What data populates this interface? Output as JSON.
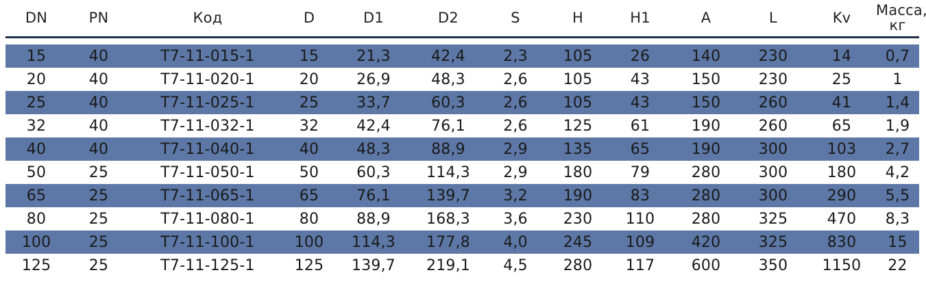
{
  "colors": {
    "header_rule": "#1e2f45",
    "row_shade": "#5d78a7",
    "text": "#1a1a1a"
  },
  "columns": [
    "DN",
    "PN",
    "Код",
    "D",
    "D1",
    "D2",
    "S",
    "H",
    "H1",
    "A",
    "L",
    "Kv",
    "Масса, кг"
  ],
  "header": {
    "mass_line1": "Масса,",
    "mass_line2": "кг"
  },
  "rows": [
    [
      "15",
      "40",
      "T7-11-015-1",
      "15",
      "21,3",
      "42,4",
      "2,3",
      "105",
      "26",
      "140",
      "230",
      "14",
      "0,7"
    ],
    [
      "20",
      "40",
      "T7-11-020-1",
      "20",
      "26,9",
      "48,3",
      "2,6",
      "105",
      "43",
      "150",
      "230",
      "25",
      "1"
    ],
    [
      "25",
      "40",
      "T7-11-025-1",
      "25",
      "33,7",
      "60,3",
      "2,6",
      "105",
      "43",
      "150",
      "260",
      "41",
      "1,4"
    ],
    [
      "32",
      "40",
      "T7-11-032-1",
      "32",
      "42,4",
      "76,1",
      "2,6",
      "125",
      "61",
      "190",
      "260",
      "65",
      "1,9"
    ],
    [
      "40",
      "40",
      "T7-11-040-1",
      "40",
      "48,3",
      "88,9",
      "2,9",
      "135",
      "65",
      "190",
      "300",
      "103",
      "2,7"
    ],
    [
      "50",
      "25",
      "T7-11-050-1",
      "50",
      "60,3",
      "114,3",
      "2,9",
      "180",
      "79",
      "280",
      "300",
      "180",
      "4,2"
    ],
    [
      "65",
      "25",
      "T7-11-065-1",
      "65",
      "76,1",
      "139,7",
      "3,2",
      "190",
      "83",
      "280",
      "300",
      "290",
      "5,5"
    ],
    [
      "80",
      "25",
      "T7-11-080-1",
      "80",
      "88,9",
      "168,3",
      "3,6",
      "230",
      "110",
      "280",
      "325",
      "470",
      "8,3"
    ],
    [
      "100",
      "25",
      "T7-11-100-1",
      "100",
      "114,3",
      "177,8",
      "4,0",
      "245",
      "109",
      "420",
      "325",
      "830",
      "15"
    ],
    [
      "125",
      "25",
      "T7-11-125-1",
      "125",
      "139,7",
      "219,1",
      "4,5",
      "280",
      "117",
      "600",
      "350",
      "1150",
      "22"
    ]
  ]
}
